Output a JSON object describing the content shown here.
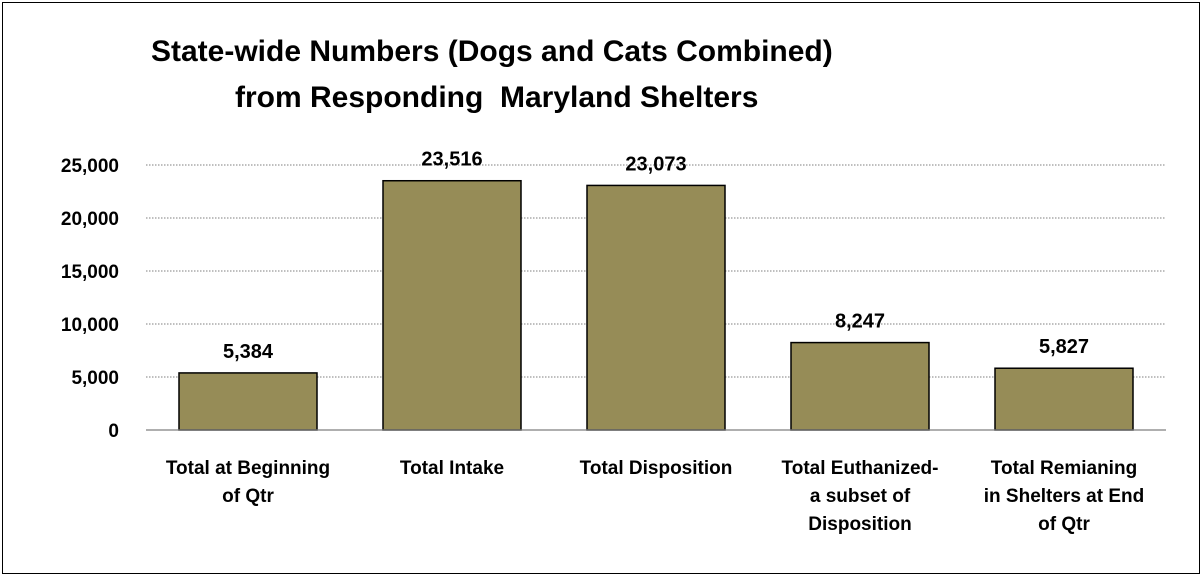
{
  "chart_data": {
    "type": "bar",
    "title_lines": [
      "State-wide Numbers (Dogs and Cats Combined)",
      "from Responding  Maryland Shelters"
    ],
    "categories": [
      [
        "Total at Beginning",
        "of Qtr"
      ],
      [
        "Total Intake"
      ],
      [
        "Total Disposition"
      ],
      [
        "Total Euthanized-",
        "a subset of",
        "Disposition"
      ],
      [
        "Total Remianing",
        "in Shelters at End",
        "of Qtr"
      ]
    ],
    "values": [
      5384,
      23516,
      23073,
      8247,
      5827
    ],
    "value_labels": [
      "5,384",
      "23,516",
      "23,073",
      "8,247",
      "5,827"
    ],
    "y_ticks": [
      0,
      5000,
      10000,
      15000,
      20000,
      25000
    ],
    "y_tick_labels": [
      "0",
      "5,000",
      "10,000",
      "15,000",
      "20,000",
      "25,000"
    ],
    "ylim": [
      0,
      25000
    ],
    "xlabel": "",
    "ylabel": "",
    "grid": "horizontal dotted",
    "legend": "none",
    "bar_color": "#968c57",
    "bar_edge_color": "#000000"
  }
}
